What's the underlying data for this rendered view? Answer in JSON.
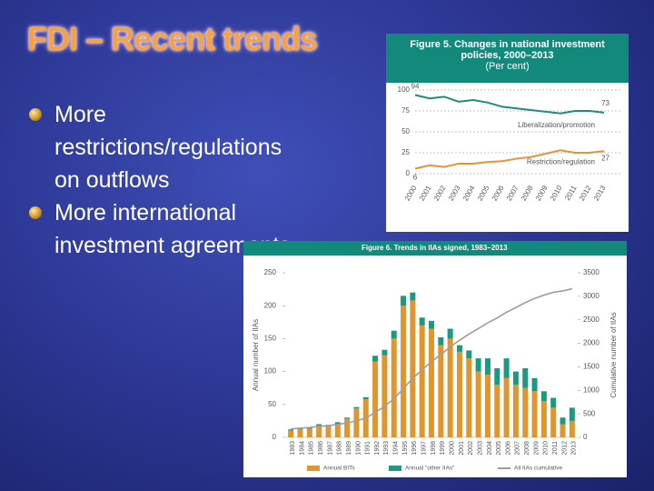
{
  "slide": {
    "title": "FDI – Recent trends",
    "bullets": [
      "More restrictions/regulations on outflows",
      "More international investment agreements"
    ]
  },
  "chart_data": [
    {
      "type": "line",
      "title": "Figure 5. Changes in national investment policies, 2000–2013",
      "subtitle": "(Per cent)",
      "categories": [
        "2000",
        "2001",
        "2002",
        "2003",
        "2004",
        "2005",
        "2006",
        "2007",
        "2008",
        "2009",
        "2010",
        "2011",
        "2012",
        "2013"
      ],
      "series": [
        {
          "name": "Liberalization/promotion",
          "color": "#1f8c7a",
          "values": [
            94,
            90,
            92,
            86,
            88,
            85,
            80,
            78,
            76,
            74,
            72,
            75,
            75,
            73
          ]
        },
        {
          "name": "Restriction/regulation",
          "color": "#e8913a",
          "values": [
            6,
            10,
            8,
            12,
            12,
            14,
            15,
            18,
            20,
            24,
            28,
            25,
            25,
            27
          ]
        }
      ],
      "ylim": [
        0,
        100
      ],
      "yticks": [
        0,
        25,
        50,
        75,
        100
      ],
      "grid": true
    },
    {
      "type": "bar",
      "stacked": true,
      "title": "Figure 6. Trends in IIAs signed, 1983–2013",
      "y_label": "Annual number of IIAs",
      "y2_label": "Cumulative number of IIAs",
      "categories": [
        "1983",
        "1984",
        "1985",
        "1986",
        "1987",
        "1988",
        "1989",
        "1990",
        "1991",
        "1992",
        "1993",
        "1994",
        "1995",
        "1996",
        "1997",
        "1998",
        "1999",
        "2000",
        "2001",
        "2002",
        "2003",
        "2004",
        "2005",
        "2006",
        "2007",
        "2008",
        "2009",
        "2010",
        "2011",
        "2012",
        "2013"
      ],
      "series": [
        {
          "name": "Annual BITs",
          "color": "#e0962e",
          "values": [
            10,
            12,
            13,
            18,
            17,
            20,
            28,
            44,
            58,
            115,
            125,
            150,
            200,
            208,
            170,
            165,
            140,
            150,
            130,
            120,
            100,
            95,
            80,
            90,
            80,
            75,
            70,
            55,
            45,
            20,
            25
          ]
        },
        {
          "name": "Annual \"other IIAs\"",
          "color": "#1a9a80",
          "values": [
            2,
            1,
            2,
            2,
            2,
            3,
            2,
            2,
            3,
            9,
            8,
            12,
            15,
            12,
            12,
            12,
            12,
            15,
            10,
            12,
            20,
            25,
            25,
            30,
            20,
            30,
            20,
            15,
            15,
            10,
            20
          ]
        },
        {
          "name": "All IIAs cumulative",
          "color": "#9e9e9e",
          "axis": "y2",
          "values": [
            180,
            195,
            210,
            230,
            250,
            275,
            305,
            350,
            410,
            530,
            660,
            820,
            1035,
            1255,
            1435,
            1610,
            1760,
            1925,
            2065,
            2195,
            2315,
            2435,
            2540,
            2660,
            2760,
            2865,
            2955,
            3025,
            3085,
            3115,
            3160
          ]
        }
      ],
      "ylim": [
        0,
        250
      ],
      "yticks": [
        0,
        50,
        100,
        150,
        200,
        250
      ],
      "y2lim": [
        0,
        3500
      ],
      "y2ticks": [
        0,
        500,
        1000,
        1500,
        2000,
        2500,
        3000,
        3500
      ]
    }
  ]
}
